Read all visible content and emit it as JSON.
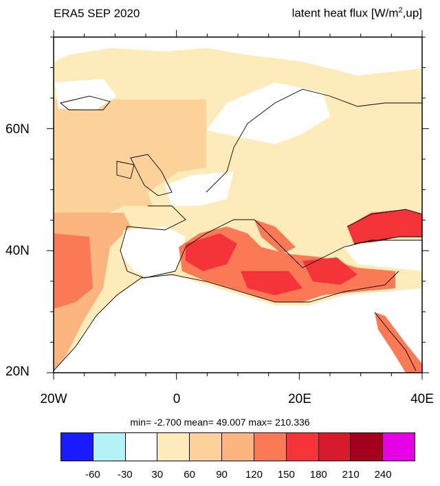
{
  "header": {
    "title_left": "ERA5 SEP 2020",
    "title_right_prefix": "latent heat flux [W/m",
    "title_right_sup": "2",
    "title_right_suffix": ",up]"
  },
  "map": {
    "projection": "lat-lon",
    "lon_range": [
      -20,
      40
    ],
    "lat_range": [
      20,
      75
    ],
    "lat_labels": [
      {
        "value": 60,
        "text": "60N"
      },
      {
        "value": 40,
        "text": "40N"
      },
      {
        "value": 20,
        "text": "20N"
      }
    ],
    "lon_labels": [
      {
        "value": -20,
        "text": "20W"
      },
      {
        "value": 0,
        "text": "0"
      },
      {
        "value": 20,
        "text": "20E"
      },
      {
        "value": 40,
        "text": "40E"
      }
    ]
  },
  "stats": {
    "text": "min=  -2.700  mean=  49.007  max= 210.336"
  },
  "colorbar": {
    "colors": [
      "#1a1aff",
      "#b3f3f7",
      "#ffffff",
      "#fdebb9",
      "#fcd29a",
      "#fbb47d",
      "#f97a55",
      "#f5343a",
      "#d71a2c",
      "#a4001e",
      "#e600e6"
    ],
    "labels": [
      "-60",
      "-30",
      "30",
      "60",
      "90",
      "120",
      "150",
      "180",
      "210",
      "240"
    ]
  }
}
